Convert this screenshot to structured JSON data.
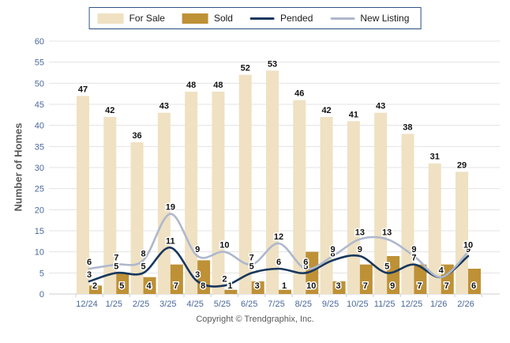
{
  "legend": {
    "items": [
      {
        "label": "For Sale"
      },
      {
        "label": "Sold"
      },
      {
        "label": "Pended"
      },
      {
        "label": "New Listing"
      }
    ]
  },
  "y_axis": {
    "title": "Number of Homes"
  },
  "footer": {
    "copyright": "Copyright © Trendgraphix, Inc."
  },
  "colors": {
    "for_sale": "#EFE1C2",
    "sold": "#BE9136",
    "pended": "#17375E",
    "new_listing": "#AEB8CC",
    "axis_text": "#4A689A",
    "value_label": "#111111",
    "grid": "#E3E3E3",
    "legend_border": "#2D5488"
  },
  "chart_data": {
    "type": "bar",
    "title": "",
    "xlabel": "",
    "ylabel": "Number of Homes",
    "ylim": [
      0,
      60
    ],
    "ytick_step": 5,
    "grid": true,
    "legend_position": "top",
    "categories": [
      "12/24",
      "1/25",
      "2/25",
      "3/25",
      "4/25",
      "5/25",
      "6/25",
      "7/25",
      "8/25",
      "9/25",
      "10/25",
      "11/25",
      "12/25",
      "1/26",
      "2/26"
    ],
    "series": [
      {
        "name": "For Sale",
        "type": "bar",
        "color": "#EFE1C2",
        "values": [
          47,
          42,
          36,
          43,
          48,
          48,
          52,
          53,
          46,
          42,
          41,
          43,
          38,
          31,
          29
        ]
      },
      {
        "name": "Sold",
        "type": "bar",
        "color": "#BE9136",
        "values": [
          2,
          5,
          4,
          7,
          8,
          1,
          3,
          1,
          10,
          3,
          7,
          9,
          7,
          7,
          6
        ]
      },
      {
        "name": "Pended",
        "type": "line",
        "color": "#17375E",
        "values": [
          3,
          5,
          5,
          11,
          3,
          2,
          5,
          6,
          5,
          8,
          9,
          5,
          7,
          4,
          9
        ]
      },
      {
        "name": "New Listing",
        "type": "line",
        "color": "#AEB8CC",
        "values": [
          6,
          7,
          8,
          19,
          9,
          10,
          7,
          12,
          6,
          9,
          13,
          13,
          9,
          4,
          10
        ]
      }
    ]
  }
}
